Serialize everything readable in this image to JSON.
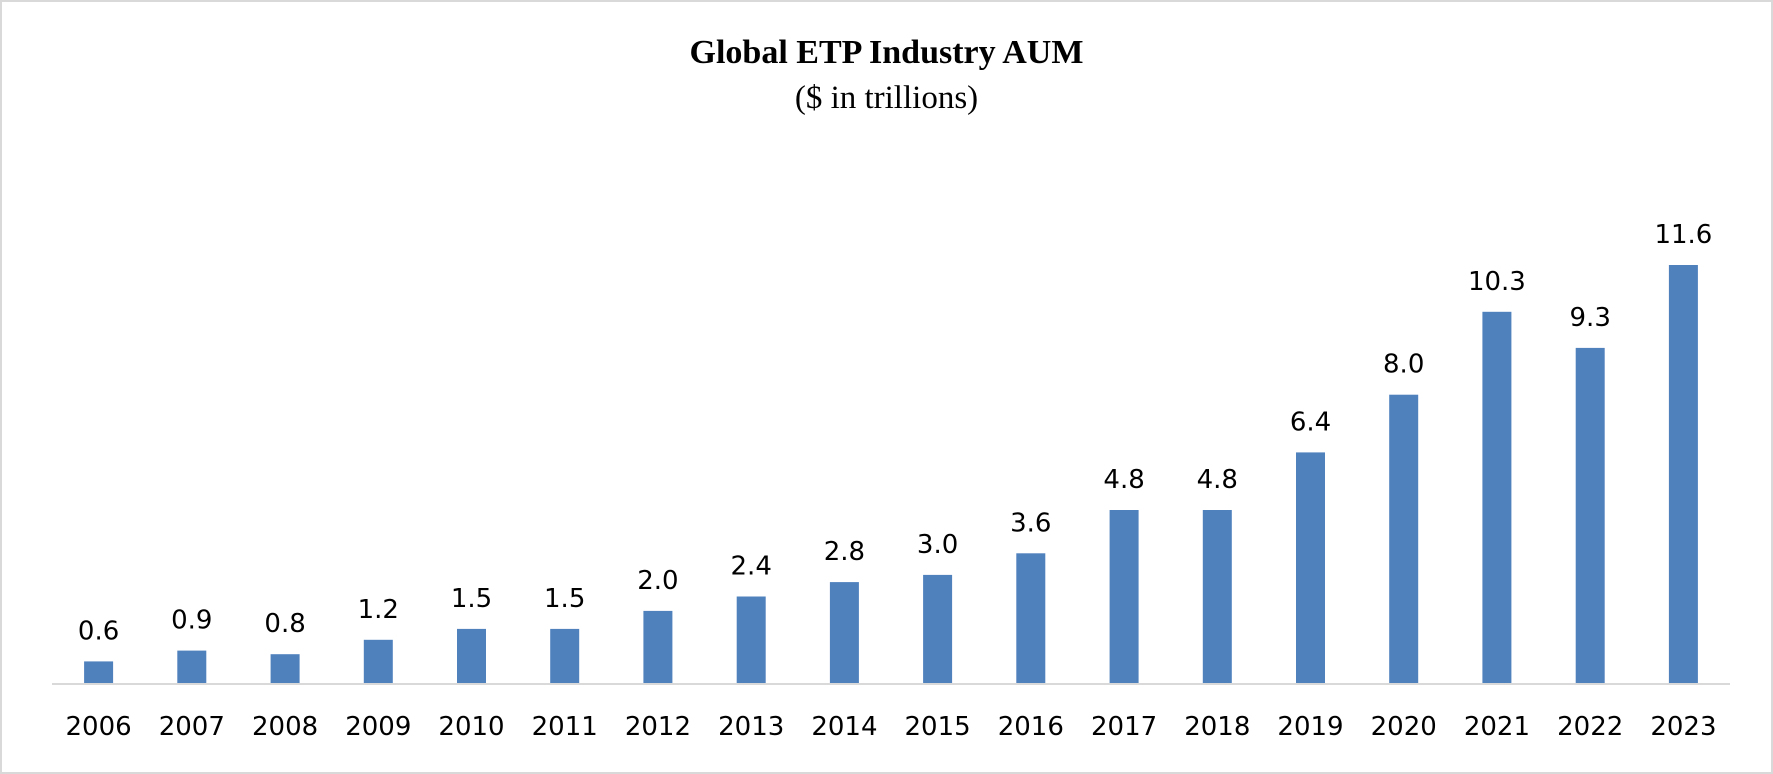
{
  "chart_data": {
    "type": "bar",
    "title": "Global ETP Industry AUM",
    "subtitle": "($ in trillions)",
    "xlabel": "",
    "ylabel": "",
    "categories": [
      "2006",
      "2007",
      "2008",
      "2009",
      "2010",
      "2011",
      "2012",
      "2013",
      "2014",
      "2015",
      "2016",
      "2017",
      "2018",
      "2019",
      "2020",
      "2021",
      "2022",
      "2023"
    ],
    "values": [
      0.6,
      0.9,
      0.8,
      1.2,
      1.5,
      1.5,
      2.0,
      2.4,
      2.8,
      3.0,
      3.6,
      4.8,
      4.8,
      6.4,
      8.0,
      10.3,
      9.3,
      11.6
    ],
    "labels": [
      "0.6",
      "0.9",
      "0.8",
      "1.2",
      "1.5",
      "1.5",
      "2.0",
      "2.4",
      "2.8",
      "3.0",
      "3.6",
      "4.8",
      "4.8",
      "6.4",
      "8.0",
      "10.3",
      "9.3",
      "11.6"
    ],
    "ylim": [
      0,
      11.6
    ],
    "grid": false,
    "legend": "none",
    "bar_color": "#4f81bd",
    "axis_color": "#d9d9d9"
  }
}
